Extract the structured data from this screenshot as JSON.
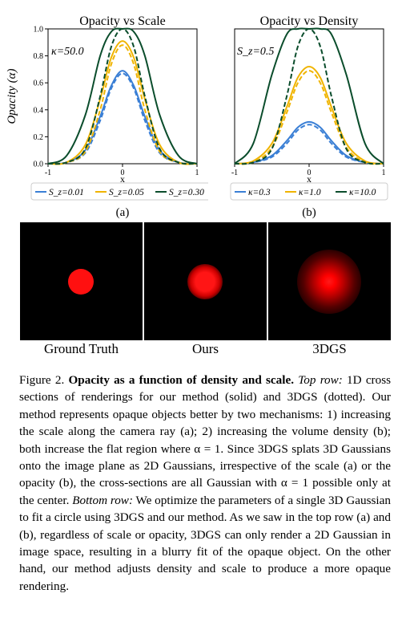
{
  "charts": [
    {
      "title": "Opacity vs Scale",
      "annotation": "κ=50.0",
      "ylabel": "Opacity (α)",
      "xlabel": "x",
      "sublabel": "(a)",
      "yticks": [
        "0.0",
        "0.2",
        "0.4",
        "0.6",
        "0.8",
        "1.0"
      ],
      "xticks": [
        "-1",
        "0",
        "1"
      ],
      "legend": [
        "S_z=0.01",
        "S_z=0.05",
        "S_z=0.30"
      ]
    },
    {
      "title": "Opacity vs Density",
      "annotation": "S_z=0.5",
      "xlabel": "x",
      "sublabel": "(b)",
      "xticks": [
        "-1",
        "0",
        "1"
      ],
      "legend": [
        "κ=0.3",
        "κ=1.0",
        "κ=10.0"
      ]
    }
  ],
  "chart_data": [
    {
      "type": "line",
      "title": "Opacity vs Scale",
      "xlabel": "x",
      "ylabel": "Opacity (α)",
      "xlim": [
        -1,
        1
      ],
      "ylim": [
        0,
        1
      ],
      "annotation": "κ=50.0",
      "x": [
        -1,
        -0.75,
        -0.5,
        -0.3,
        -0.15,
        0,
        0.15,
        0.3,
        0.5,
        0.75,
        1
      ],
      "series": [
        {
          "name": "S_z=0.01 (ours)",
          "color": "#3a7fd5",
          "style": "solid",
          "values": [
            0.0,
            0.01,
            0.1,
            0.35,
            0.58,
            0.69,
            0.58,
            0.35,
            0.1,
            0.01,
            0.0
          ]
        },
        {
          "name": "S_z=0.01 (3DGS)",
          "color": "#3a7fd5",
          "style": "dashed",
          "values": [
            0.0,
            0.01,
            0.08,
            0.32,
            0.56,
            0.67,
            0.56,
            0.32,
            0.08,
            0.01,
            0.0
          ]
        },
        {
          "name": "S_z=0.05 (ours)",
          "color": "#f0b400",
          "style": "solid",
          "values": [
            0.0,
            0.01,
            0.14,
            0.48,
            0.79,
            0.91,
            0.79,
            0.48,
            0.14,
            0.01,
            0.0
          ]
        },
        {
          "name": "S_z=0.05 (3DGS)",
          "color": "#f0b400",
          "style": "dashed",
          "values": [
            0.0,
            0.01,
            0.09,
            0.4,
            0.74,
            0.88,
            0.74,
            0.4,
            0.09,
            0.01,
            0.0
          ]
        },
        {
          "name": "S_z=0.30 (ours)",
          "color": "#0b4d2c",
          "style": "solid",
          "values": [
            0.0,
            0.06,
            0.36,
            0.8,
            0.98,
            1.0,
            0.98,
            0.8,
            0.36,
            0.06,
            0.0
          ]
        },
        {
          "name": "S_z=0.30 (3DGS)",
          "color": "#0b4d2c",
          "style": "dashed",
          "values": [
            0.0,
            0.01,
            0.11,
            0.5,
            0.87,
            1.0,
            0.87,
            0.5,
            0.11,
            0.01,
            0.0
          ]
        }
      ]
    },
    {
      "type": "line",
      "title": "Opacity vs Density",
      "xlabel": "x",
      "xlim": [
        -1,
        1
      ],
      "ylim": [
        0,
        1
      ],
      "annotation": "S_z=0.5",
      "x": [
        -1,
        -0.75,
        -0.5,
        -0.3,
        -0.15,
        0,
        0.15,
        0.3,
        0.5,
        0.75,
        1
      ],
      "series": [
        {
          "name": "κ=0.3 (ours)",
          "color": "#3a7fd5",
          "style": "solid",
          "values": [
            0.0,
            0.01,
            0.06,
            0.17,
            0.27,
            0.31,
            0.27,
            0.17,
            0.06,
            0.01,
            0.0
          ]
        },
        {
          "name": "κ=0.3 (3DGS)",
          "color": "#3a7fd5",
          "style": "dashed",
          "values": [
            0.0,
            0.01,
            0.05,
            0.15,
            0.25,
            0.29,
            0.25,
            0.15,
            0.05,
            0.01,
            0.0
          ]
        },
        {
          "name": "κ=1.0 (ours)",
          "color": "#f0b400",
          "style": "solid",
          "values": [
            0.0,
            0.02,
            0.15,
            0.42,
            0.64,
            0.72,
            0.64,
            0.42,
            0.15,
            0.02,
            0.0
          ]
        },
        {
          "name": "κ=1.0 (3DGS)",
          "color": "#f0b400",
          "style": "dashed",
          "values": [
            0.0,
            0.01,
            0.12,
            0.38,
            0.6,
            0.69,
            0.6,
            0.38,
            0.12,
            0.01,
            0.0
          ]
        },
        {
          "name": "κ=10.0 (ours)",
          "color": "#0b4d2c",
          "style": "solid",
          "values": [
            0.0,
            0.15,
            0.66,
            0.96,
            1.0,
            1.0,
            1.0,
            0.96,
            0.66,
            0.15,
            0.0
          ]
        },
        {
          "name": "κ=10.0 (3DGS)",
          "color": "#0b4d2c",
          "style": "dashed",
          "values": [
            0.0,
            0.01,
            0.11,
            0.5,
            0.87,
            1.0,
            0.87,
            0.5,
            0.11,
            0.01,
            0.0
          ]
        }
      ]
    }
  ],
  "images": [
    {
      "label": "Ground Truth",
      "blur": "none"
    },
    {
      "label": "Ours",
      "blur": "low"
    },
    {
      "label": "3DGS",
      "blur": "high"
    }
  ],
  "caption": {
    "figure": "Figure 2.",
    "title": "Opacity as a function of density and scale.",
    "top_row": "Top row:",
    "text1": "1D cross sections of renderings for our method (solid) and 3DGS (dotted). Our method represents opaque objects better by two mechanisms: 1) increasing the scale along the camera ray (a); 2) increasing the volume density (b); both increase the flat region where α = 1. Since 3DGS splats 3D Gaussians onto the image plane as 2D Gaussians, irrespective of the scale (a) or the opacity (b), the cross-sections are all Gaussian with α = 1 possible only at the center.",
    "bottom_row": "Bottom row:",
    "text2": "We optimize the parameters of a single 3D Gaussian to fit a circle using 3DGS and our method. As we saw in the top row (a) and (b), regardless of scale or opacity, 3DGS can only render a 2D Gaussian in image space, resulting in a blurry fit of the opaque object. On the other hand, our method adjusts density and scale to produce a more opaque rendering."
  }
}
